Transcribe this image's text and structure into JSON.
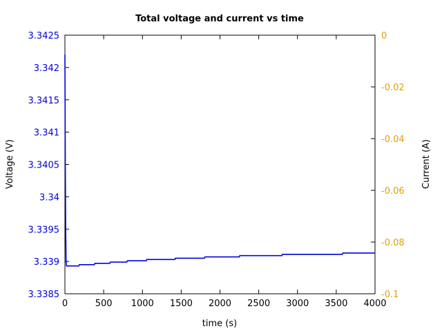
{
  "chart_data": {
    "type": "line",
    "title": "Total voltage and current vs time",
    "xlabel": "time (s)",
    "ylabel_left": "Voltage (V)",
    "ylabel_right": "Current (A)",
    "xlim": [
      0,
      4000
    ],
    "ylim_left": [
      3.3385,
      3.3425
    ],
    "ylim_right": [
      -0.1,
      0
    ],
    "x_ticks": [
      "0",
      "500",
      "1000",
      "1500",
      "2000",
      "2500",
      "3000",
      "3500",
      "4000"
    ],
    "y_left_ticks": [
      "3.3385",
      "3.339",
      "3.3395",
      "3.34",
      "3.3405",
      "3.341",
      "3.3415",
      "3.342",
      "3.3425"
    ],
    "y_right_ticks": [
      "-0.1",
      "-0.08",
      "-0.06",
      "-0.04",
      "-0.02",
      "0"
    ],
    "grid": false,
    "colors": {
      "voltage": "#0000dd",
      "current": "#e0a000",
      "axes": "#000000"
    },
    "series": [
      {
        "axis": "left",
        "x": [
          0,
          5,
          10,
          15,
          20,
          25,
          180,
          185,
          380,
          385,
          580,
          585,
          800,
          805,
          1050,
          1055,
          1420,
          1425,
          1800,
          1805,
          2250,
          2255,
          2800,
          2805,
          3580,
          3585,
          4000
        ],
        "values": [
          3.3422,
          3.3405,
          3.3395,
          3.339,
          3.33893,
          3.33893,
          3.33893,
          3.33895,
          3.33895,
          3.33897,
          3.33897,
          3.33899,
          3.33899,
          3.33901,
          3.33901,
          3.33903,
          3.33903,
          3.33905,
          3.33905,
          3.33907,
          3.33907,
          3.33909,
          3.33909,
          3.33911,
          3.33911,
          3.33913,
          3.33913
        ]
      }
    ]
  }
}
